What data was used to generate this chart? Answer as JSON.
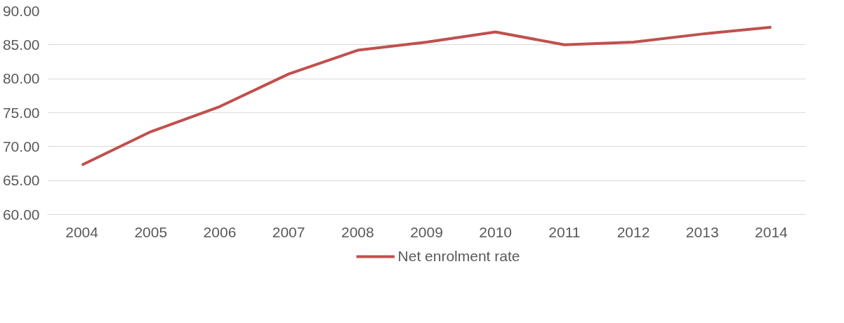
{
  "chart_data": {
    "type": "line",
    "categories": [
      "2004",
      "2005",
      "2006",
      "2007",
      "2008",
      "2009",
      "2010",
      "2011",
      "2012",
      "2013",
      "2014"
    ],
    "series": [
      {
        "name": "Net enrolment rate",
        "color": "#c0504d",
        "values": [
          67.3,
          72.2,
          75.9,
          80.7,
          84.2,
          85.4,
          86.9,
          85.0,
          85.4,
          86.6,
          87.6
        ]
      }
    ],
    "ylim": [
      60,
      90
    ],
    "yticks": [
      {
        "value": 60,
        "label": "60.00"
      },
      {
        "value": 65,
        "label": "65.00"
      },
      {
        "value": 70,
        "label": "70.00"
      },
      {
        "value": 75,
        "label": "75.00"
      },
      {
        "value": 80,
        "label": "80.00"
      },
      {
        "value": 85,
        "label": "85.00"
      },
      {
        "value": 90,
        "label": "90.00"
      }
    ],
    "grid": "y",
    "legend": "bottom",
    "marker": "none",
    "line_style": "solid"
  }
}
